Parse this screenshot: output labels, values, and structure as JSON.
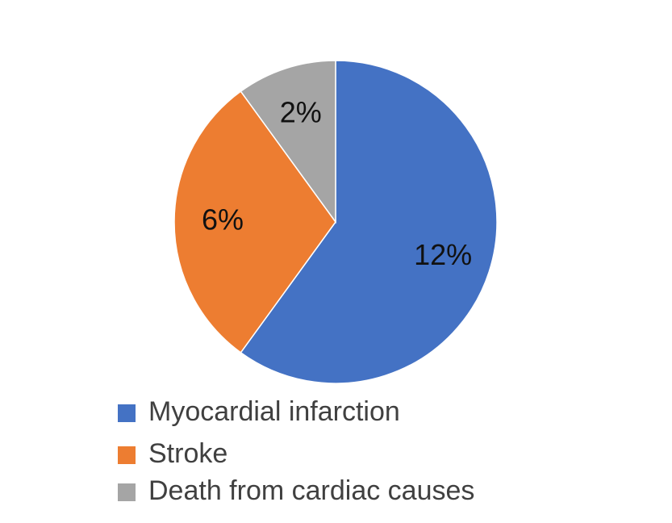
{
  "chart_data": {
    "type": "pie",
    "categories": [
      "Myocardial infarction",
      "Stroke",
      "Death from cardiac causes"
    ],
    "values": [
      12,
      6,
      2
    ],
    "value_labels": [
      "12%",
      "6%",
      "2%"
    ],
    "colors": [
      "#4472c4",
      "#ed7d31",
      "#a5a5a5"
    ]
  }
}
